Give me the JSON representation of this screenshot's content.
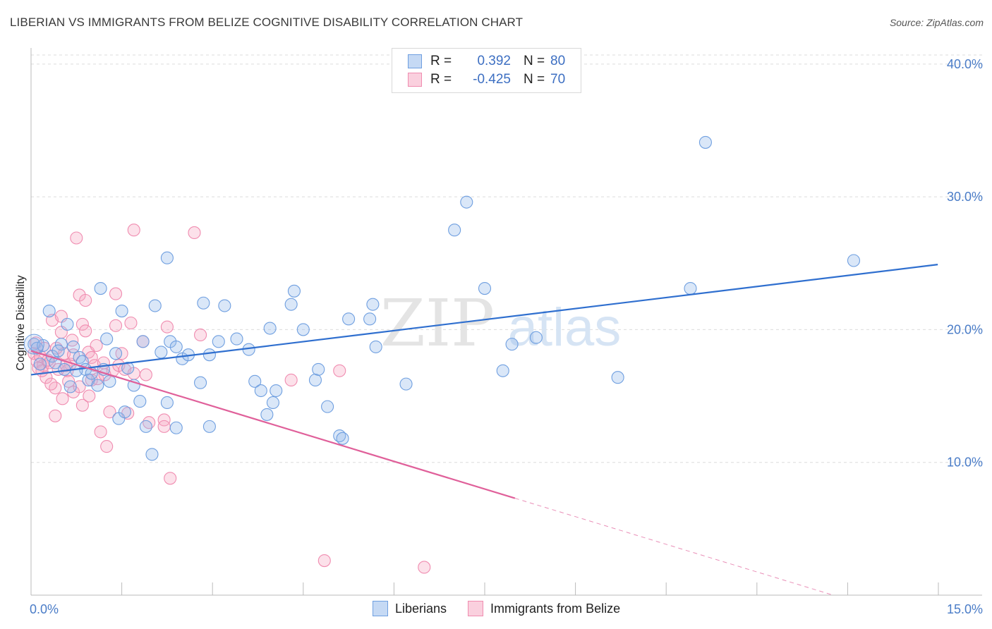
{
  "title": "LIBERIAN VS IMMIGRANTS FROM BELIZE COGNITIVE DISABILITY CORRELATION CHART",
  "source": "Source: ZipAtlas.com",
  "watermark": {
    "zip": "ZIP",
    "atlas": "atlas"
  },
  "colors": {
    "blue": "#6f9fe0",
    "blue_fill": "rgba(150,185,235,0.35)",
    "blue_line": "#2f6fcf",
    "pink": "#f08cb0",
    "pink_fill": "rgba(245,170,195,0.35)",
    "pink_line": "#e0609a"
  },
  "legend": {
    "rows": [
      {
        "r_label": "R =",
        "r_value": "0.392",
        "n_label": "N =",
        "n_value": "80"
      },
      {
        "r_label": "R =",
        "r_value": "-0.425",
        "n_label": "N =",
        "n_value": "70"
      }
    ]
  },
  "bottom_legend": [
    "Liberians",
    "Immigrants from Belize"
  ],
  "chart_data": {
    "type": "scatter",
    "title": "LIBERIAN VS IMMIGRANTS FROM BELIZE COGNITIVE DISABILITY CORRELATION CHART",
    "xlabel": "",
    "ylabel": "Cognitive Disability",
    "xlim": [
      0,
      15
    ],
    "ylim": [
      0,
      41
    ],
    "x_tick_labels": [
      "0.0%",
      "15.0%"
    ],
    "y_ticks": [
      10,
      20,
      30,
      40
    ],
    "y_tick_labels": [
      "10.0%",
      "20.0%",
      "30.0%",
      "40.0%"
    ],
    "series": [
      {
        "name": "Liberians",
        "trend": {
          "x": [
            0,
            14.99
          ],
          "y": [
            16.6,
            24.9
          ]
        },
        "points": [
          [
            0.05,
            18.9
          ],
          [
            0.1,
            18.6
          ],
          [
            0.2,
            18.8
          ],
          [
            0.3,
            21.4
          ],
          [
            0.35,
            18.0
          ],
          [
            0.4,
            17.5
          ],
          [
            0.5,
            18.9
          ],
          [
            0.55,
            17.0
          ],
          [
            0.6,
            20.4
          ],
          [
            0.65,
            15.7
          ],
          [
            0.7,
            18.7
          ],
          [
            0.8,
            17.9
          ],
          [
            0.85,
            17.6
          ],
          [
            0.9,
            17.0
          ],
          [
            0.95,
            16.2
          ],
          [
            1.0,
            16.7
          ],
          [
            1.1,
            15.8
          ],
          [
            1.15,
            23.1
          ],
          [
            1.2,
            17.0
          ],
          [
            1.25,
            19.3
          ],
          [
            1.3,
            16.1
          ],
          [
            1.4,
            18.2
          ],
          [
            1.45,
            13.3
          ],
          [
            1.5,
            21.4
          ],
          [
            1.55,
            13.8
          ],
          [
            1.6,
            17.1
          ],
          [
            1.7,
            15.8
          ],
          [
            1.8,
            14.6
          ],
          [
            1.85,
            19.1
          ],
          [
            1.9,
            12.7
          ],
          [
            2.0,
            10.6
          ],
          [
            2.05,
            21.8
          ],
          [
            2.15,
            18.3
          ],
          [
            2.25,
            25.4
          ],
          [
            2.25,
            14.5
          ],
          [
            2.3,
            19.1
          ],
          [
            2.4,
            18.7
          ],
          [
            2.4,
            12.6
          ],
          [
            2.5,
            17.8
          ],
          [
            2.6,
            18.1
          ],
          [
            2.8,
            16.0
          ],
          [
            2.85,
            22.0
          ],
          [
            2.95,
            18.1
          ],
          [
            2.95,
            12.7
          ],
          [
            3.1,
            19.1
          ],
          [
            3.2,
            21.8
          ],
          [
            3.4,
            19.3
          ],
          [
            3.6,
            18.5
          ],
          [
            3.7,
            16.1
          ],
          [
            3.8,
            15.4
          ],
          [
            3.9,
            13.6
          ],
          [
            3.95,
            20.1
          ],
          [
            4.0,
            14.5
          ],
          [
            4.05,
            15.4
          ],
          [
            4.3,
            21.9
          ],
          [
            4.35,
            22.9
          ],
          [
            4.5,
            20.0
          ],
          [
            4.7,
            16.2
          ],
          [
            4.75,
            17.0
          ],
          [
            4.9,
            14.2
          ],
          [
            5.1,
            12.0
          ],
          [
            5.15,
            11.8
          ],
          [
            5.25,
            20.8
          ],
          [
            5.6,
            20.8
          ],
          [
            5.65,
            21.9
          ],
          [
            5.7,
            18.7
          ],
          [
            6.2,
            15.9
          ],
          [
            7.0,
            27.5
          ],
          [
            7.2,
            29.6
          ],
          [
            7.5,
            23.1
          ],
          [
            7.8,
            16.9
          ],
          [
            7.95,
            18.9
          ],
          [
            8.35,
            19.4
          ],
          [
            9.7,
            16.4
          ],
          [
            10.9,
            23.1
          ],
          [
            11.15,
            34.1
          ],
          [
            13.6,
            25.2
          ],
          [
            0.15,
            17.4
          ],
          [
            0.45,
            18.4
          ],
          [
            0.75,
            16.9
          ]
        ]
      },
      {
        "name": "Immigrants from Belize",
        "trend": {
          "x": [
            0,
            8.0
          ],
          "y": [
            18.4,
            7.3
          ]
        },
        "trend_dashed": {
          "x": [
            8.0,
            14.99
          ],
          "y": [
            7.3,
            -2.4
          ]
        },
        "points": [
          [
            0.05,
            18.2
          ],
          [
            0.1,
            17.6
          ],
          [
            0.15,
            18.0
          ],
          [
            0.2,
            17.3
          ],
          [
            0.25,
            16.4
          ],
          [
            0.3,
            17.5
          ],
          [
            0.35,
            20.7
          ],
          [
            0.4,
            15.6
          ],
          [
            0.4,
            13.5
          ],
          [
            0.45,
            17.0
          ],
          [
            0.5,
            19.8
          ],
          [
            0.5,
            21.0
          ],
          [
            0.55,
            18.2
          ],
          [
            0.6,
            16.9
          ],
          [
            0.65,
            17.4
          ],
          [
            0.7,
            15.3
          ],
          [
            0.7,
            18.1
          ],
          [
            0.75,
            26.9
          ],
          [
            0.8,
            15.7
          ],
          [
            0.8,
            22.6
          ],
          [
            0.85,
            20.4
          ],
          [
            0.9,
            19.9
          ],
          [
            0.9,
            22.2
          ],
          [
            0.95,
            18.3
          ],
          [
            1.0,
            17.9
          ],
          [
            1.0,
            16.2
          ],
          [
            1.05,
            17.3
          ],
          [
            1.1,
            16.3
          ],
          [
            1.15,
            12.3
          ],
          [
            1.2,
            17.5
          ],
          [
            1.25,
            11.2
          ],
          [
            1.3,
            13.8
          ],
          [
            1.35,
            16.9
          ],
          [
            1.4,
            20.3
          ],
          [
            1.4,
            22.7
          ],
          [
            1.45,
            17.3
          ],
          [
            1.5,
            18.2
          ],
          [
            1.55,
            17.0
          ],
          [
            1.6,
            13.7
          ],
          [
            1.65,
            20.5
          ],
          [
            1.7,
            16.7
          ],
          [
            1.7,
            27.5
          ],
          [
            1.85,
            19.1
          ],
          [
            1.9,
            16.6
          ],
          [
            1.95,
            13.0
          ],
          [
            2.2,
            13.2
          ],
          [
            2.2,
            12.7
          ],
          [
            2.25,
            20.2
          ],
          [
            2.3,
            8.8
          ],
          [
            2.7,
            27.3
          ],
          [
            2.8,
            19.6
          ],
          [
            4.3,
            16.2
          ],
          [
            4.85,
            2.6
          ],
          [
            5.1,
            16.9
          ],
          [
            6.5,
            2.1
          ],
          [
            0.08,
            19.0
          ],
          [
            0.18,
            16.9
          ],
          [
            0.28,
            17.7
          ],
          [
            0.22,
            18.6
          ],
          [
            0.33,
            15.9
          ],
          [
            0.58,
            17.3
          ],
          [
            0.62,
            16.1
          ],
          [
            0.68,
            19.2
          ],
          [
            0.12,
            17.1
          ],
          [
            0.42,
            18.6
          ],
          [
            0.52,
            14.8
          ],
          [
            0.85,
            14.3
          ],
          [
            0.96,
            15.0
          ],
          [
            1.08,
            18.8
          ],
          [
            1.22,
            16.6
          ]
        ]
      }
    ]
  }
}
